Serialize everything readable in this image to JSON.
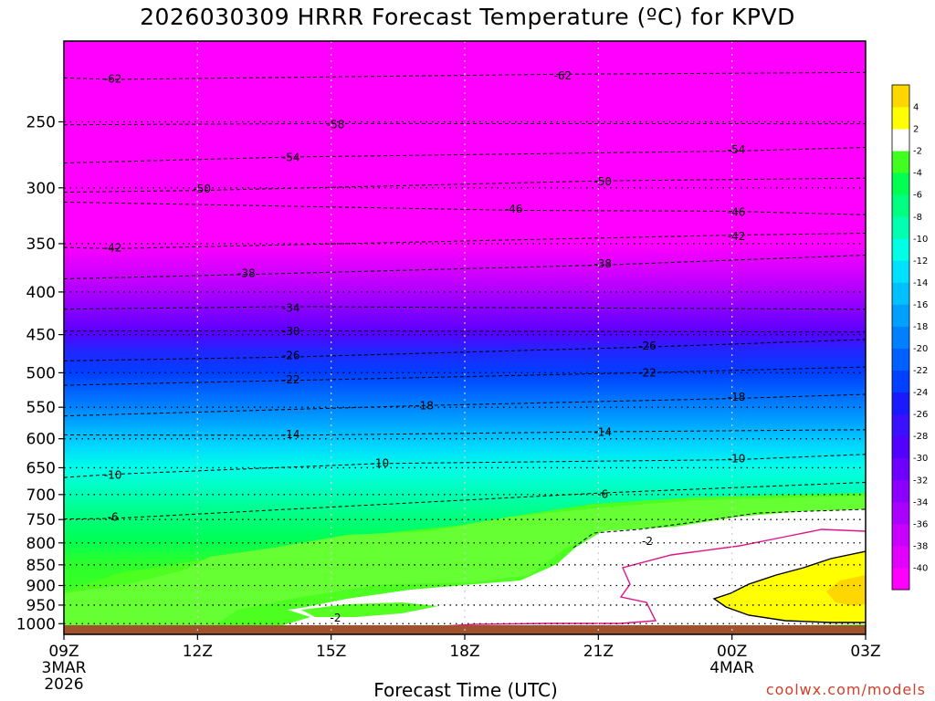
{
  "chart_data": {
    "type": "heatmap",
    "title": "2026030309 HRRR Forecast Temperature (ºC) for KPVD",
    "xlabel": "Forecast Time (UTC)",
    "ylabel": "",
    "x_ticks": [
      {
        "label": "09Z",
        "sub": [
          "3MAR",
          "2026"
        ],
        "hour": 0
      },
      {
        "label": "12Z",
        "sub": [],
        "hour": 3
      },
      {
        "label": "15Z",
        "sub": [],
        "hour": 6
      },
      {
        "label": "18Z",
        "sub": [],
        "hour": 9
      },
      {
        "label": "21Z",
        "sub": [],
        "hour": 12
      },
      {
        "label": "00Z",
        "sub": [
          "4MAR"
        ],
        "hour": 15
      },
      {
        "label": "03Z",
        "sub": [],
        "hour": 18
      }
    ],
    "y_ticks": [
      250,
      300,
      350,
      400,
      450,
      500,
      550,
      600,
      650,
      700,
      750,
      800,
      850,
      900,
      950,
      1000
    ],
    "xlim": [
      0,
      18
    ],
    "ylim_pressure": [
      1030,
      200
    ],
    "colorbar": {
      "levels": [
        -42,
        -40,
        -38,
        -36,
        -34,
        -32,
        -30,
        -28,
        -26,
        -24,
        -22,
        -20,
        -18,
        -16,
        -14,
        -12,
        -10,
        -8,
        -6,
        -4,
        -2,
        2,
        4,
        6
      ],
      "colors": [
        "#ff00ff",
        "#e300ff",
        "#c800ff",
        "#aa00ff",
        "#8c00ff",
        "#6e00ff",
        "#5200ff",
        "#3a10ff",
        "#1a1aff",
        "#0040ff",
        "#0060ff",
        "#0080ff",
        "#00a0ff",
        "#00c0ff",
        "#00e0ff",
        "#00ffe4",
        "#00ffb0",
        "#00ff80",
        "#00ff50",
        "#40ff20",
        "#ffffff",
        "#ffff00",
        "#ffd700"
      ],
      "labels": [
        "-40",
        "-38",
        "-36",
        "-34",
        "-32",
        "-30",
        "-28",
        "-26",
        "-24",
        "-22",
        "-20",
        "-18",
        "-16",
        "-14",
        "-12",
        "-10",
        "-8",
        "-6",
        "-4",
        "-2",
        "2",
        "4"
      ]
    },
    "contour_labels": [
      {
        "text": "-62",
        "hour": 1.1,
        "p": 222
      },
      {
        "text": "-62",
        "hour": 11.2,
        "p": 220
      },
      {
        "text": "-58",
        "hour": 6.1,
        "p": 252
      },
      {
        "text": "-54",
        "hour": 5.1,
        "p": 276
      },
      {
        "text": "-54",
        "hour": 15.1,
        "p": 270
      },
      {
        "text": "-50",
        "hour": 3.1,
        "p": 301
      },
      {
        "text": "-50",
        "hour": 12.1,
        "p": 295
      },
      {
        "text": "-46",
        "hour": 10.1,
        "p": 318
      },
      {
        "text": "-46",
        "hour": 15.1,
        "p": 321
      },
      {
        "text": "-42",
        "hour": 1.1,
        "p": 354
      },
      {
        "text": "-42",
        "hour": 15.1,
        "p": 343
      },
      {
        "text": "-38",
        "hour": 4.1,
        "p": 380
      },
      {
        "text": "-38",
        "hour": 12.1,
        "p": 370
      },
      {
        "text": "-34",
        "hour": 5.1,
        "p": 418
      },
      {
        "text": "-30",
        "hour": 5.1,
        "p": 446
      },
      {
        "text": "-26",
        "hour": 5.1,
        "p": 477
      },
      {
        "text": "-26",
        "hour": 13.1,
        "p": 464
      },
      {
        "text": "-22",
        "hour": 5.1,
        "p": 510
      },
      {
        "text": "-22",
        "hour": 13.1,
        "p": 500
      },
      {
        "text": "-18",
        "hour": 8.1,
        "p": 548
      },
      {
        "text": "-18",
        "hour": 15.1,
        "p": 535
      },
      {
        "text": "-14",
        "hour": 5.1,
        "p": 593
      },
      {
        "text": "-14",
        "hour": 12.1,
        "p": 589
      },
      {
        "text": "-10",
        "hour": 1.1,
        "p": 663
      },
      {
        "text": "-10",
        "hour": 7.1,
        "p": 642
      },
      {
        "text": "-10",
        "hour": 15.1,
        "p": 634
      },
      {
        "text": "-6",
        "hour": 1.1,
        "p": 745
      },
      {
        "text": "-6",
        "hour": 12.1,
        "p": 699
      },
      {
        "text": "-2",
        "hour": 13.1,
        "p": 796
      },
      {
        "text": "-2",
        "hour": 6.1,
        "p": 984
      }
    ]
  },
  "credit": "coolwx.com/models"
}
